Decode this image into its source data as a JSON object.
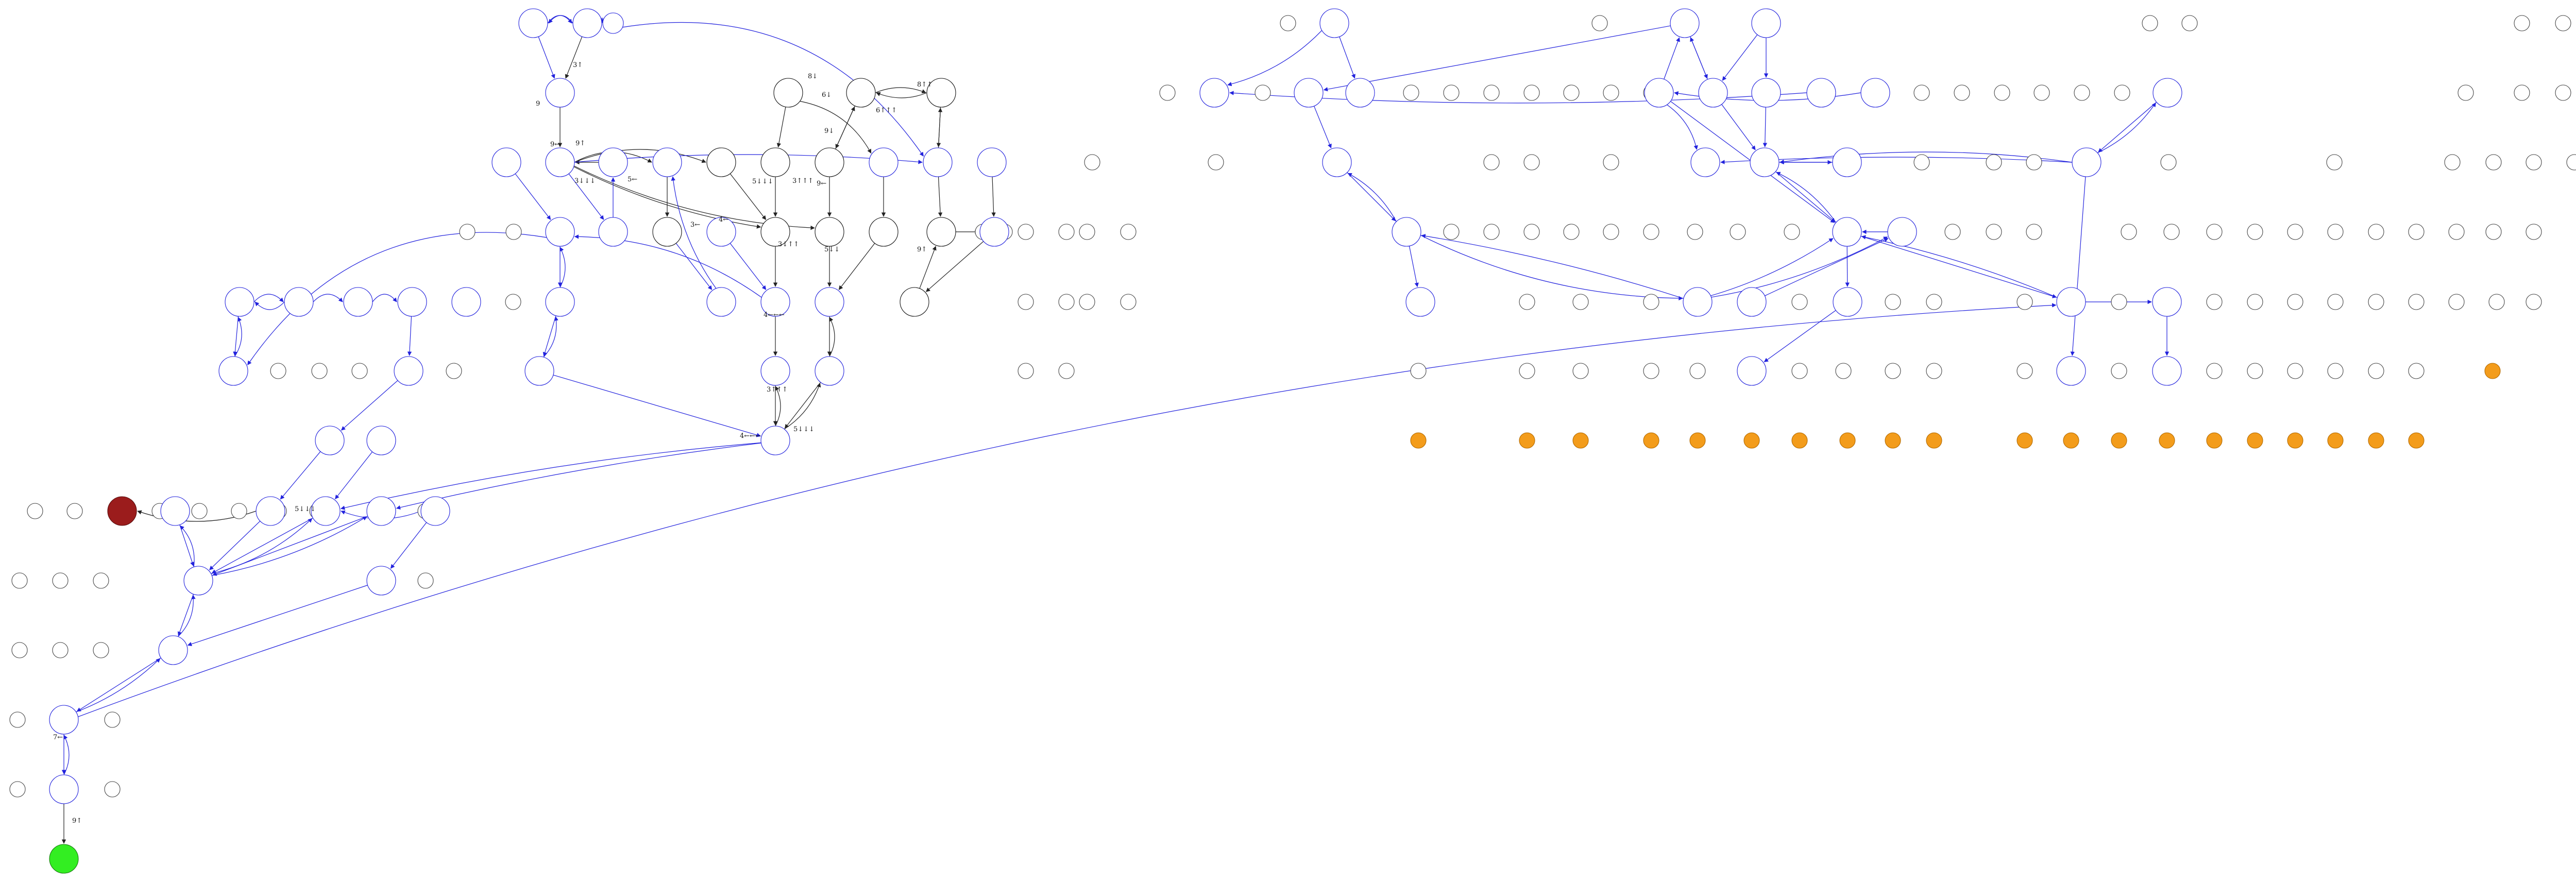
{
  "colors": {
    "blue": "#2222dd",
    "black": "#222222",
    "gray": "#444444",
    "orange": "#f39c1b",
    "red": "#9b1c1c",
    "green": "#33ee22"
  },
  "edge_labels": [
    "9",
    "3↑",
    "9←",
    "9↑",
    "3↓↓↓",
    "5←",
    "3←",
    "4←",
    "5↓↓↓",
    "3↑↑↑",
    "9←",
    "9↓",
    "8↓",
    "6↓",
    "8↑↑",
    "6↑↑↑",
    "3↓↑↑",
    "5↓↓",
    "9↑",
    "4←←←",
    "3↑↑↑",
    "4←←←",
    "5↓↓↓",
    "5↓↓↓",
    "7←",
    "9↑"
  ]
}
